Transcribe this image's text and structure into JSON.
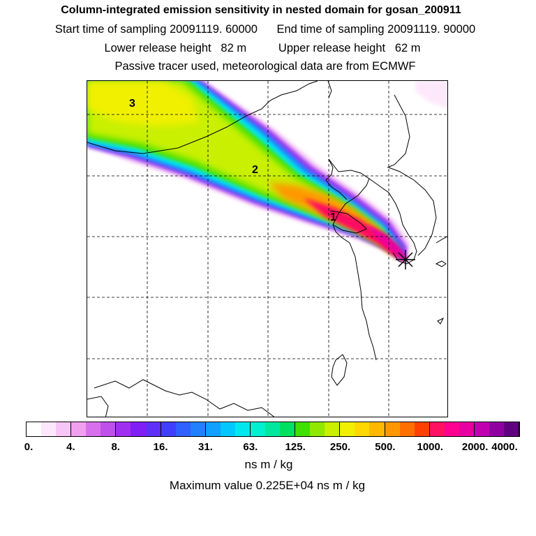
{
  "header": {
    "title": "Column-integrated emission sensitivity in nested domain for gosan_200911",
    "sampling": "Start time of sampling 20091119. 60000      End time of sampling 20091119. 90000",
    "release": "Lower release height   82 m          Upper release height   62 m",
    "tracer": "Passive tracer used, meteorological data are from ECMWF"
  },
  "map": {
    "labels": [
      "3",
      "2",
      "1"
    ],
    "marker": "receptor-star"
  },
  "colorbar": {
    "colors": [
      "#ffffff",
      "#fde8fb",
      "#f7c6f6",
      "#f0a0ef",
      "#d870ee",
      "#c050ec",
      "#a030f0",
      "#8020f4",
      "#6030f8",
      "#4040fc",
      "#3060ff",
      "#2080ff",
      "#10a0ff",
      "#00c8ff",
      "#00e8ee",
      "#00f0d0",
      "#00e8a0",
      "#00e060",
      "#40e000",
      "#90e800",
      "#c8f000",
      "#f0f000",
      "#ffd800",
      "#ffb800",
      "#ff9800",
      "#ff7000",
      "#ff4000",
      "#ff1060",
      "#ff0090",
      "#e800a0",
      "#c000b0",
      "#9000a0",
      "#600080"
    ],
    "tick_labels": [
      "0.",
      "4.",
      "8.",
      "16.",
      "31.",
      "63.",
      "125.",
      "250.",
      "500.",
      "1000.",
      "2000.",
      "4000."
    ],
    "units": "ns m / kg",
    "max_value": "Maximum value  0.225E+04 ns m / kg"
  }
}
